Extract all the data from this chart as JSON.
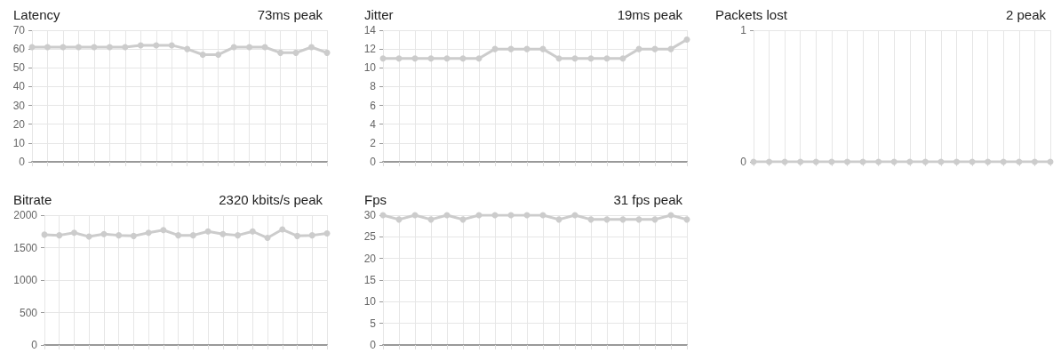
{
  "chart_data": [
    {
      "type": "line",
      "title": "Latency",
      "subtitle": "73ms peak",
      "categories": [
        null,
        null,
        null,
        null,
        null,
        null,
        null,
        null,
        null,
        null,
        null,
        null,
        null,
        null,
        null,
        null,
        null,
        null,
        null,
        null
      ],
      "values": [
        61,
        61,
        61,
        61,
        61,
        61,
        61,
        62,
        62,
        62,
        60,
        57,
        57,
        61,
        61,
        61,
        58,
        58,
        61,
        58
      ],
      "color": "#cccccc",
      "ylim": [
        0,
        70
      ],
      "yticks": [
        0,
        10,
        20,
        30,
        40,
        50,
        60,
        70
      ],
      "grid": true,
      "marker": "circle",
      "tick_labels": "y"
    },
    {
      "type": "line",
      "title": "Jitter",
      "subtitle": "19ms peak",
      "categories": [
        null,
        null,
        null,
        null,
        null,
        null,
        null,
        null,
        null,
        null,
        null,
        null,
        null,
        null,
        null,
        null,
        null,
        null,
        null,
        null
      ],
      "values": [
        11,
        11,
        11,
        11,
        11,
        11,
        11,
        12,
        12,
        12,
        12,
        11,
        11,
        11,
        11,
        11,
        12,
        12,
        12,
        13
      ],
      "color": "#cccccc",
      "ylim": [
        0,
        14
      ],
      "yticks": [
        0,
        2,
        4,
        6,
        8,
        10,
        12,
        14
      ],
      "grid": true,
      "marker": "circle",
      "tick_labels": "y"
    },
    {
      "type": "line",
      "title": "Packets lost",
      "subtitle": "2 peak",
      "categories": [
        null,
        null,
        null,
        null,
        null,
        null,
        null,
        null,
        null,
        null,
        null,
        null,
        null,
        null,
        null,
        null,
        null,
        null,
        null,
        null
      ],
      "values": [
        0,
        0,
        0,
        0,
        0,
        0,
        0,
        0,
        0,
        0,
        0,
        0,
        0,
        0,
        0,
        0,
        0,
        0,
        0,
        0
      ],
      "color": "#cccccc",
      "ylim": [
        0,
        1
      ],
      "yticks": [
        0,
        1
      ],
      "grid": true,
      "marker": "circle",
      "tick_labels": "y"
    },
    {
      "type": "line",
      "title": "Bitrate",
      "subtitle": "2320 kbits/s peak",
      "categories": [
        null,
        null,
        null,
        null,
        null,
        null,
        null,
        null,
        null,
        null,
        null,
        null,
        null,
        null,
        null,
        null,
        null,
        null,
        null,
        null
      ],
      "values": [
        1700,
        1690,
        1730,
        1670,
        1710,
        1690,
        1680,
        1730,
        1770,
        1690,
        1690,
        1750,
        1710,
        1690,
        1750,
        1650,
        1780,
        1680,
        1690,
        1720
      ],
      "color": "#cccccc",
      "ylim": [
        0,
        2000
      ],
      "yticks": [
        0,
        500,
        1000,
        1500,
        2000
      ],
      "grid": true,
      "marker": "circle",
      "tick_labels": "y"
    },
    {
      "type": "line",
      "title": "Fps",
      "subtitle": "31 fps peak",
      "categories": [
        null,
        null,
        null,
        null,
        null,
        null,
        null,
        null,
        null,
        null,
        null,
        null,
        null,
        null,
        null,
        null,
        null,
        null,
        null,
        null
      ],
      "values": [
        30,
        29,
        30,
        29,
        30,
        29,
        30,
        30,
        30,
        30,
        30,
        29,
        30,
        29,
        29,
        29,
        29,
        29,
        30,
        29
      ],
      "color": "#cccccc",
      "ylim": [
        0,
        30
      ],
      "yticks": [
        0,
        5,
        10,
        15,
        20,
        25,
        30
      ],
      "grid": true,
      "marker": "circle",
      "tick_labels": "y"
    }
  ]
}
